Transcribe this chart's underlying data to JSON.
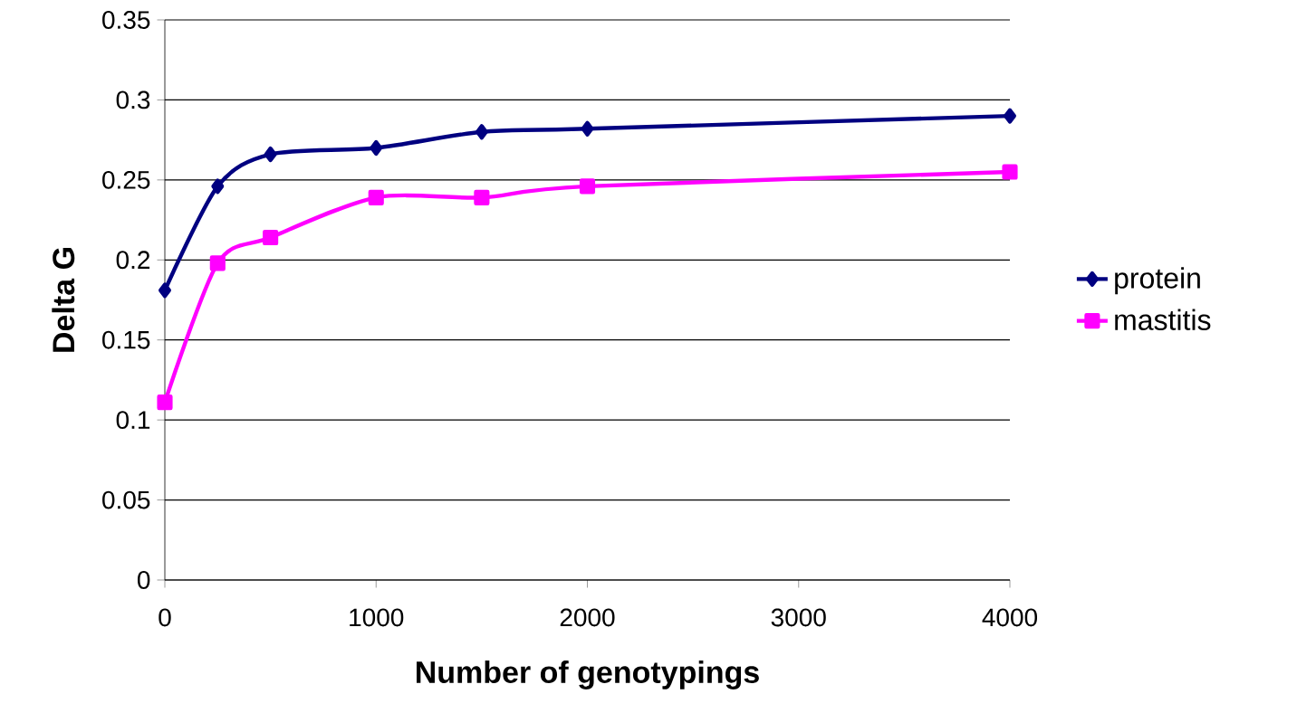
{
  "chart_data": {
    "type": "line",
    "xlabel": "Number of genotypings",
    "ylabel": "Delta G",
    "series": [
      {
        "name": "protein",
        "color": "#000080",
        "marker": "diamond",
        "x": [
          0,
          250,
          500,
          1000,
          1500,
          2000,
          4000
        ],
        "values": [
          0.181,
          0.246,
          0.266,
          0.27,
          0.28,
          0.282,
          0.29
        ]
      },
      {
        "name": "mastitis",
        "color": "#ff00ff",
        "marker": "square",
        "x": [
          0,
          250,
          500,
          1000,
          1500,
          2000,
          4000
        ],
        "values": [
          0.111,
          0.198,
          0.214,
          0.239,
          0.239,
          0.246,
          0.255
        ]
      }
    ],
    "xlim": [
      0,
      4000
    ],
    "xticks": [
      0,
      1000,
      2000,
      3000,
      4000
    ],
    "ylim": [
      0,
      0.35
    ],
    "yticks": [
      0,
      0.05,
      0.1,
      0.15,
      0.2,
      0.25,
      0.3,
      0.35
    ],
    "grid": "y",
    "legend": "right"
  }
}
